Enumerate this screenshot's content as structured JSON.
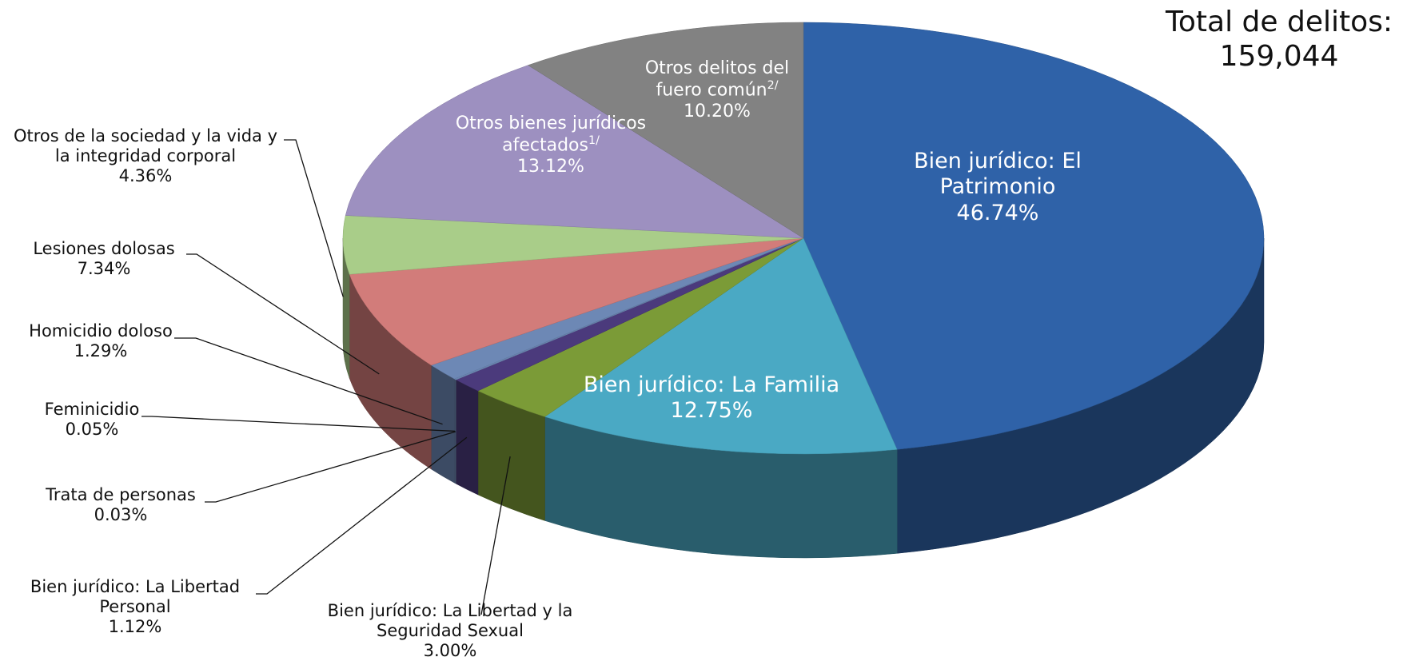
{
  "chart_data": {
    "type": "pie",
    "annotation": {
      "label": "Total de delitos:",
      "value": 159044,
      "value_label": "159,044"
    },
    "categories": [
      "Bien jurídico: El Patrimonio",
      "Bien jurídico: La Familia",
      "Bien jurídico: La Libertad y la Seguridad Sexual",
      "Bien jurídico: La Libertad Personal",
      "Trata de personas",
      "Feminicidio",
      "Homicidio doloso",
      "Lesiones dolosas",
      "Otros de la sociedad y la vida y la integridad corporal",
      "Otros bienes jurídicos afectados",
      "Otros delitos del fuero común"
    ],
    "footnotes": [
      null,
      null,
      null,
      null,
      null,
      null,
      null,
      null,
      null,
      "1/",
      "2/"
    ],
    "values": [
      46.74,
      12.75,
      3.0,
      1.12,
      0.03,
      0.05,
      1.29,
      7.34,
      4.36,
      13.12,
      10.2
    ],
    "value_labels": [
      "46.74%",
      "12.75%",
      "3.00%",
      "1.12%",
      "0.03%",
      "0.05%",
      "1.29%",
      "7.34%",
      "4.36%",
      "13.12%",
      "10.20%"
    ],
    "colors": [
      "#2f62a8",
      "#4aa9c4",
      "#7b9b37",
      "#4b3a7c",
      "#7f9bc4",
      "#7090c0",
      "#6d88b5",
      "#d27c7a",
      "#a9cd89",
      "#9d90c0",
      "#828282"
    ]
  }
}
